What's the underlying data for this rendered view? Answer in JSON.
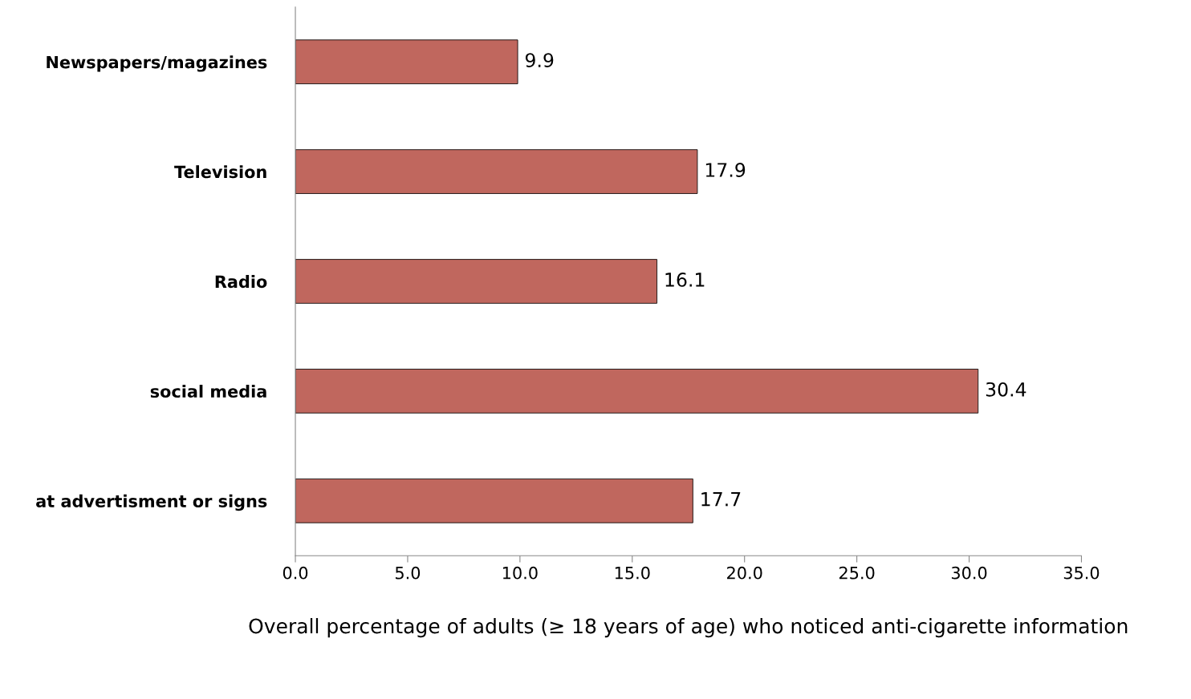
{
  "chart_data": {
    "type": "bar",
    "orientation": "horizontal",
    "xlabel": "Overall percentage of adults (≥ 18 years of age) who noticed anti-cigarette information",
    "categories": [
      "Newspapers/magazines",
      "Television",
      "Radio",
      "social media",
      "at advertisment or signs"
    ],
    "values": [
      9.9,
      17.9,
      16.1,
      30.4,
      17.7
    ],
    "color": "#c0675e",
    "xlim": [
      0,
      35
    ],
    "xticks": [
      {
        "value": 0,
        "label": "0.0"
      },
      {
        "value": 5,
        "label": "5.0"
      },
      {
        "value": 10,
        "label": "10.0"
      },
      {
        "value": 15,
        "label": "15.0"
      },
      {
        "value": 20,
        "label": "20.0"
      },
      {
        "value": 25,
        "label": "25.0"
      },
      {
        "value": 30,
        "label": "30.0"
      },
      {
        "value": 35,
        "label": "35.0"
      }
    ],
    "data_labels": true,
    "grid": false,
    "legend": false
  }
}
